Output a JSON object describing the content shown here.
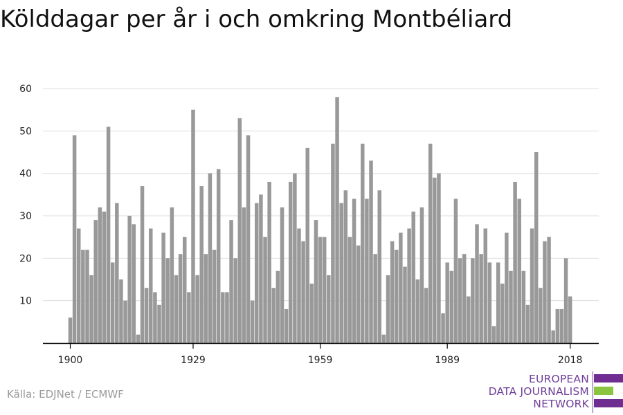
{
  "title": "Kölddagar per år i och omkring Montbéliard",
  "source": "Källa: EDJNet / ECMWF",
  "logo": {
    "line1": "EUROPEAN",
    "line2": "DATA JOURNALISM",
    "line3": "NETWORK"
  },
  "colors": {
    "bar": "#999999",
    "grid": "#dddddd",
    "axis": "#000000",
    "logo_purple": "#6f2c91",
    "logo_green": "#8bc53f",
    "source_text": "#9a9a9a"
  },
  "chart_data": {
    "type": "bar",
    "title": "Kölddagar per år i och omkring Montbéliard",
    "xlabel": "",
    "ylabel": "",
    "ylim": [
      0,
      60
    ],
    "y_ticks": [
      10,
      20,
      30,
      40,
      50,
      60
    ],
    "x_tick_labels": [
      "1900",
      "1929",
      "1959",
      "1989",
      "2018"
    ],
    "grid": true,
    "x": [
      1900,
      1901,
      1902,
      1903,
      1904,
      1905,
      1906,
      1907,
      1908,
      1909,
      1910,
      1911,
      1912,
      1913,
      1914,
      1915,
      1916,
      1917,
      1918,
      1919,
      1920,
      1921,
      1922,
      1923,
      1924,
      1925,
      1926,
      1927,
      1928,
      1929,
      1930,
      1931,
      1932,
      1933,
      1934,
      1935,
      1936,
      1937,
      1938,
      1939,
      1940,
      1941,
      1942,
      1943,
      1944,
      1945,
      1946,
      1947,
      1948,
      1949,
      1950,
      1951,
      1952,
      1953,
      1954,
      1955,
      1956,
      1957,
      1958,
      1959,
      1960,
      1961,
      1962,
      1963,
      1964,
      1965,
      1966,
      1967,
      1968,
      1969,
      1970,
      1971,
      1972,
      1973,
      1974,
      1975,
      1976,
      1977,
      1978,
      1979,
      1980,
      1981,
      1982,
      1983,
      1984,
      1985,
      1986,
      1987,
      1988,
      1989,
      1990,
      1991,
      1992,
      1993,
      1994,
      1995,
      1996,
      1997,
      1998,
      1999,
      2000,
      2001,
      2002,
      2003,
      2004,
      2005,
      2006,
      2007,
      2008,
      2009,
      2010,
      2011,
      2012,
      2013,
      2014,
      2015,
      2016,
      2017,
      2018
    ],
    "values": [
      6,
      49,
      27,
      22,
      22,
      16,
      29,
      32,
      31,
      51,
      19,
      33,
      15,
      10,
      30,
      28,
      2,
      37,
      13,
      27,
      12,
      9,
      26,
      20,
      32,
      16,
      21,
      25,
      12,
      55,
      16,
      37,
      21,
      40,
      22,
      41,
      12,
      12,
      29,
      20,
      53,
      32,
      49,
      10,
      33,
      35,
      25,
      38,
      13,
      17,
      32,
      8,
      38,
      40,
      27,
      24,
      46,
      14,
      29,
      25,
      25,
      16,
      47,
      58,
      33,
      36,
      25,
      34,
      23,
      47,
      34,
      43,
      21,
      36,
      2,
      16,
      24,
      22,
      26,
      18,
      27,
      31,
      15,
      32,
      13,
      47,
      39,
      40,
      7,
      19,
      17,
      34,
      20,
      21,
      11,
      20,
      28,
      21,
      27,
      19,
      4,
      19,
      14,
      26,
      17,
      38,
      34,
      17,
      9,
      27,
      45,
      13,
      24,
      25,
      3,
      8,
      8,
      20,
      11
    ]
  }
}
